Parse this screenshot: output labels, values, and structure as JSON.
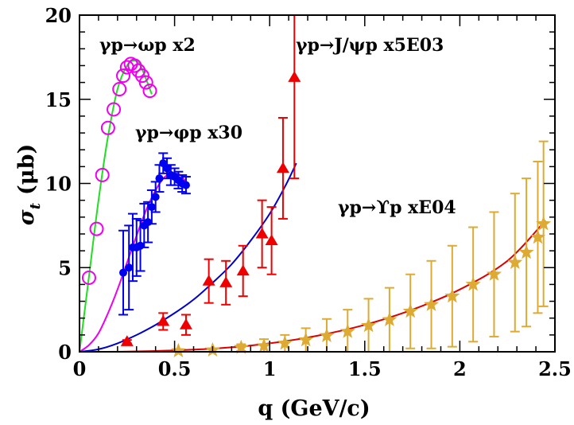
{
  "chart_data": {
    "type": "scatter",
    "xlabel": "q  (GeV/c)",
    "ylabel_main": "σ",
    "ylabel_sub": "t",
    "ylabel_unit": "(μb)",
    "xlim": [
      0,
      2.5
    ],
    "ylim": [
      0,
      20
    ],
    "xticks": [
      0,
      0.5,
      1,
      1.5,
      2,
      2.5
    ],
    "xtick_labels": [
      "0",
      "0.5",
      "1",
      "1.5",
      "2",
      "2.5"
    ],
    "yticks": [
      0,
      5,
      10,
      15,
      20
    ],
    "ytick_labels": [
      "0",
      "5",
      "10",
      "15",
      "20"
    ],
    "colors": {
      "omega_marker": "#ee00ee",
      "omega_curve": "#22dd22",
      "phi_marker": "#0000ee",
      "phi_curve": "#ee00ee",
      "jpsi_marker": "#ee0000",
      "jpsi_curve": "#0000cc",
      "upsilon_marker": "#ddaa33",
      "upsilon_curve": "#dd0000"
    },
    "series": [
      {
        "name": "omega",
        "label": "γp→ωp  x2",
        "marker": "open-circle",
        "points": [
          {
            "x": 0.05,
            "y": 4.4
          },
          {
            "x": 0.09,
            "y": 7.3
          },
          {
            "x": 0.12,
            "y": 10.5
          },
          {
            "x": 0.15,
            "y": 13.3
          },
          {
            "x": 0.18,
            "y": 14.4
          },
          {
            "x": 0.21,
            "y": 15.6
          },
          {
            "x": 0.23,
            "y": 16.4
          },
          {
            "x": 0.25,
            "y": 16.9
          },
          {
            "x": 0.27,
            "y": 17.1
          },
          {
            "x": 0.29,
            "y": 17.0
          },
          {
            "x": 0.31,
            "y": 16.7
          },
          {
            "x": 0.33,
            "y": 16.4
          },
          {
            "x": 0.35,
            "y": 16.0
          },
          {
            "x": 0.37,
            "y": 15.5
          }
        ],
        "curve": [
          {
            "x": 0,
            "y": 0
          },
          {
            "x": 0.05,
            "y": 4.5
          },
          {
            "x": 0.1,
            "y": 9.0
          },
          {
            "x": 0.15,
            "y": 12.8
          },
          {
            "x": 0.2,
            "y": 15.6
          },
          {
            "x": 0.25,
            "y": 17.0
          },
          {
            "x": 0.29,
            "y": 17.3
          },
          {
            "x": 0.32,
            "y": 17.0
          },
          {
            "x": 0.35,
            "y": 16.2
          },
          {
            "x": 0.38,
            "y": 15.3
          }
        ]
      },
      {
        "name": "phi",
        "label": "γp→φp  x30",
        "marker": "filled-circle",
        "points": [
          {
            "x": 0.23,
            "y": 4.7,
            "err": 2.5
          },
          {
            "x": 0.26,
            "y": 5.0,
            "err": 2.5
          },
          {
            "x": 0.28,
            "y": 6.2,
            "err": 2.0
          },
          {
            "x": 0.3,
            "y": 6.2,
            "err": 1.7
          },
          {
            "x": 0.32,
            "y": 6.3,
            "err": 1.5
          },
          {
            "x": 0.34,
            "y": 7.5,
            "err": 1.3
          },
          {
            "x": 0.36,
            "y": 7.7,
            "err": 1.2
          },
          {
            "x": 0.38,
            "y": 8.6,
            "err": 1.0
          },
          {
            "x": 0.4,
            "y": 9.2,
            "err": 0.9
          },
          {
            "x": 0.42,
            "y": 10.3,
            "err": 0.8
          },
          {
            "x": 0.44,
            "y": 11.2,
            "err": 0.6
          },
          {
            "x": 0.46,
            "y": 10.9,
            "err": 0.6
          },
          {
            "x": 0.48,
            "y": 10.5,
            "err": 0.6
          },
          {
            "x": 0.5,
            "y": 10.4,
            "err": 0.5
          },
          {
            "x": 0.52,
            "y": 10.2,
            "err": 0.5
          },
          {
            "x": 0.54,
            "y": 10.0,
            "err": 0.5
          },
          {
            "x": 0.56,
            "y": 9.9,
            "err": 0.5
          }
        ],
        "curve": [
          {
            "x": 0,
            "y": 0
          },
          {
            "x": 0.05,
            "y": 0.4
          },
          {
            "x": 0.1,
            "y": 1.1
          },
          {
            "x": 0.15,
            "y": 2.3
          },
          {
            "x": 0.2,
            "y": 3.7
          },
          {
            "x": 0.25,
            "y": 5.3
          },
          {
            "x": 0.3,
            "y": 6.9
          },
          {
            "x": 0.35,
            "y": 8.4
          },
          {
            "x": 0.4,
            "y": 9.6
          },
          {
            "x": 0.45,
            "y": 10.4
          },
          {
            "x": 0.5,
            "y": 10.6
          },
          {
            "x": 0.53,
            "y": 10.5
          },
          {
            "x": 0.56,
            "y": 10.1
          }
        ]
      },
      {
        "name": "jpsi",
        "label": "γp→J/ψp  x5E03",
        "marker": "filled-triangle",
        "points": [
          {
            "x": 0.25,
            "y": 0.6,
            "err": 0.1
          },
          {
            "x": 0.44,
            "y": 1.8,
            "err": 0.5
          },
          {
            "x": 0.56,
            "y": 1.6,
            "err": 0.6
          },
          {
            "x": 0.68,
            "y": 4.2,
            "err": 1.3
          },
          {
            "x": 0.77,
            "y": 4.1,
            "err": 1.3
          },
          {
            "x": 0.86,
            "y": 4.8,
            "err": 1.5
          },
          {
            "x": 0.96,
            "y": 7.0,
            "err": 2.0
          },
          {
            "x": 1.01,
            "y": 6.6,
            "err": 2.0
          },
          {
            "x": 1.07,
            "y": 10.9,
            "err": 3.0
          },
          {
            "x": 1.13,
            "y": 16.3,
            "err": 6.0
          }
        ],
        "curve": [
          {
            "x": 0,
            "y": 0
          },
          {
            "x": 0.1,
            "y": 0.15
          },
          {
            "x": 0.2,
            "y": 0.5
          },
          {
            "x": 0.3,
            "y": 1.0
          },
          {
            "x": 0.4,
            "y": 1.6
          },
          {
            "x": 0.5,
            "y": 2.3
          },
          {
            "x": 0.6,
            "y": 3.1
          },
          {
            "x": 0.7,
            "y": 4.1
          },
          {
            "x": 0.8,
            "y": 5.2
          },
          {
            "x": 0.9,
            "y": 6.6
          },
          {
            "x": 1.0,
            "y": 8.2
          },
          {
            "x": 1.08,
            "y": 9.8
          },
          {
            "x": 1.14,
            "y": 11.2
          }
        ]
      },
      {
        "name": "upsilon",
        "label": "γp→ϒp  xE04",
        "marker": "filled-star",
        "points": [
          {
            "x": 0.52,
            "y": 0.05,
            "err": 0.05
          },
          {
            "x": 0.7,
            "y": 0.1,
            "err": 0.1
          },
          {
            "x": 0.85,
            "y": 0.25,
            "err": 0.2
          },
          {
            "x": 0.97,
            "y": 0.35,
            "err": 0.4
          },
          {
            "x": 1.08,
            "y": 0.5,
            "err": 0.5
          },
          {
            "x": 1.19,
            "y": 0.7,
            "err": 0.7
          },
          {
            "x": 1.3,
            "y": 0.95,
            "err": 1.0
          },
          {
            "x": 1.41,
            "y": 1.2,
            "err": 1.3
          },
          {
            "x": 1.52,
            "y": 1.55,
            "err": 1.6
          },
          {
            "x": 1.63,
            "y": 1.9,
            "err": 1.9
          },
          {
            "x": 1.74,
            "y": 2.4,
            "err": 2.2
          },
          {
            "x": 1.85,
            "y": 2.8,
            "err": 2.6
          },
          {
            "x": 1.96,
            "y": 3.3,
            "err": 3.0
          },
          {
            "x": 2.07,
            "y": 4.0,
            "err": 3.4
          },
          {
            "x": 2.18,
            "y": 4.6,
            "err": 3.7
          },
          {
            "x": 2.29,
            "y": 5.3,
            "err": 4.1
          },
          {
            "x": 2.35,
            "y": 5.9,
            "err": 4.4
          },
          {
            "x": 2.41,
            "y": 6.8,
            "err": 4.5
          },
          {
            "x": 2.44,
            "y": 7.6,
            "err": 4.9
          }
        ],
        "curve": [
          {
            "x": 0,
            "y": 0
          },
          {
            "x": 0.25,
            "y": 0.01
          },
          {
            "x": 0.5,
            "y": 0.08
          },
          {
            "x": 0.75,
            "y": 0.22
          },
          {
            "x": 1.0,
            "y": 0.5
          },
          {
            "x": 1.25,
            "y": 0.95
          },
          {
            "x": 1.5,
            "y": 1.6
          },
          {
            "x": 1.75,
            "y": 2.5
          },
          {
            "x": 2.0,
            "y": 3.7
          },
          {
            "x": 2.25,
            "y": 5.4
          },
          {
            "x": 2.45,
            "y": 7.8
          }
        ]
      }
    ]
  }
}
